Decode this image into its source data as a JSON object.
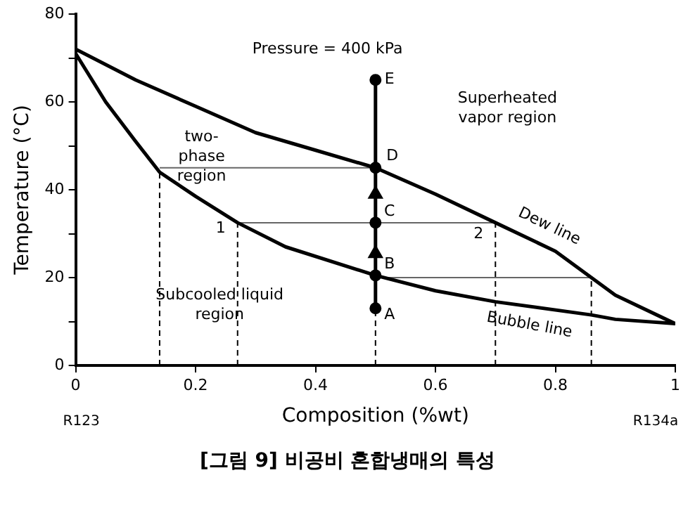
{
  "chart_data": {
    "type": "line",
    "xlabel": "Composition (%wt)",
    "ylabel": "Temperature (°C)",
    "xlim": [
      0,
      1
    ],
    "xticks": [
      0,
      0.2,
      0.4,
      0.6,
      0.8,
      1
    ],
    "ylim": [
      0,
      80
    ],
    "yticks": [
      0,
      {
        "value": 10,
        "label": null
      },
      20,
      {
        "value": 30,
        "label": null
      },
      40,
      {
        "value": 50,
        "label": null
      },
      60,
      {
        "value": 70,
        "label": null
      },
      80
    ],
    "grid": false,
    "legend": false,
    "series": [
      {
        "type": "line",
        "color": "#000000",
        "x": [
          0,
          0.1,
          0.2,
          0.3,
          0.4,
          0.5,
          0.6,
          0.7,
          0.8,
          0.86,
          0.9,
          1
        ],
        "values": [
          72,
          65,
          59,
          53,
          49,
          45,
          39,
          32.5,
          26,
          20,
          16,
          9.5
        ]
      },
      {
        "type": "line",
        "color": "#000000",
        "x": [
          0,
          0.05,
          0.1,
          0.14,
          0.2,
          0.27,
          0.35,
          0.5,
          0.6,
          0.7,
          0.86,
          0.9,
          1
        ],
        "values": [
          71,
          60,
          51,
          44,
          38.5,
          32.5,
          27,
          20.5,
          17,
          14.5,
          11.5,
          10.5,
          9.5
        ]
      },
      {
        "type": "line",
        "color": "#000000",
        "marker": "circle",
        "x": [
          0.5,
          0.5,
          0.5,
          0.5,
          0.5
        ],
        "values": [
          13,
          20.5,
          32.5,
          45,
          65
        ]
      },
      {
        "type": "scatter",
        "color": "#000000",
        "marker": "triangle",
        "x": [
          0.5,
          0.5
        ],
        "values": [
          25.5,
          39
        ]
      },
      {
        "type": "line",
        "color": "#666666",
        "x": [
          0.14,
          0.5
        ],
        "values": [
          45,
          45
        ]
      },
      {
        "type": "line",
        "color": "#666666",
        "x": [
          0.27,
          0.7
        ],
        "values": [
          32.5,
          32.5
        ]
      },
      {
        "type": "line",
        "color": "#666666",
        "x": [
          0.5,
          0.86
        ],
        "values": [
          20,
          20
        ]
      },
      {
        "type": "line",
        "color": "#000000",
        "line_style": "dashed",
        "x": [
          0.14,
          0.14
        ],
        "values": [
          0,
          44
        ]
      },
      {
        "type": "line",
        "color": "#000000",
        "line_style": "dashed",
        "x": [
          0.27,
          0.27
        ],
        "values": [
          0,
          32.5
        ]
      },
      {
        "type": "line",
        "color": "#000000",
        "line_style": "dashed",
        "x": [
          0.5,
          0.5
        ],
        "values": [
          0,
          13
        ]
      },
      {
        "type": "line",
        "color": "#000000",
        "line_style": "dashed",
        "x": [
          0.7,
          0.7
        ],
        "values": [
          0,
          32.5
        ]
      },
      {
        "type": "line",
        "color": "#000000",
        "line_style": "dashed",
        "x": [
          0.86,
          0.86
        ],
        "values": [
          0,
          20
        ]
      }
    ],
    "annotations": [
      "Pressure = 400 kPa",
      "two-\nphase\nregion",
      "Superheated\nvapor region",
      "Subcooled liquid\nregion",
      "[그림 9] 비공비 혼합냉매의 특성",
      {
        "text": "A",
        "x": 0.5,
        "y": 13
      },
      {
        "text": "B",
        "x": 0.5,
        "y": 20.5
      },
      {
        "text": "C",
        "x": 0.5,
        "y": 32.5
      },
      {
        "text": "D",
        "x": 0.5,
        "y": 45
      },
      {
        "text": "E",
        "x": 0.5,
        "y": 65
      },
      {
        "text": "1",
        "x": 0.27,
        "y": 32.5
      },
      {
        "text": "2",
        "x": 0.7,
        "y": 32.5
      },
      {
        "text": "Dew line",
        "x": 0.7,
        "y": 32.5
      },
      {
        "text": "Bubble line",
        "x": 0.7,
        "y": 14.5
      },
      "R123",
      "R134a"
    ]
  }
}
